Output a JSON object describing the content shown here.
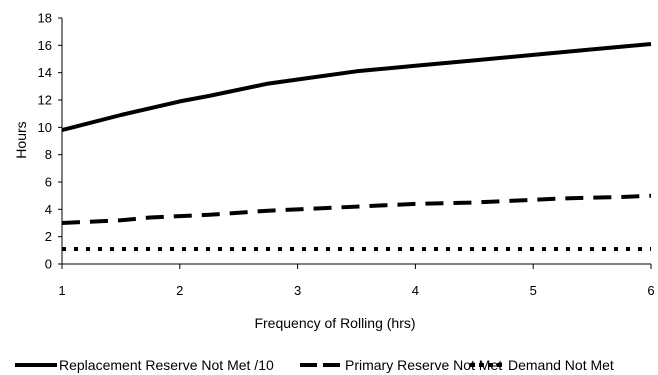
{
  "chart_data": {
    "type": "line",
    "title": "",
    "xlabel": "Frequency of  Rolling (hrs)",
    "ylabel": "Hours",
    "xlim": [
      1,
      6
    ],
    "ylim": [
      0,
      18
    ],
    "x_ticks": [
      1,
      2,
      3,
      4,
      5,
      6
    ],
    "y_ticks": [
      0,
      2,
      4,
      6,
      8,
      10,
      12,
      14,
      16,
      18
    ],
    "grid": false,
    "legend_position": "bottom",
    "series": [
      {
        "name": "Replacement Reserve Not Met /10",
        "style": "solid",
        "color": "#000000",
        "x": [
          1,
          1.5,
          2,
          2.25,
          2.75,
          3.0,
          3.5,
          4,
          4.5,
          5,
          5.5,
          6
        ],
        "y": [
          9.8,
          10.9,
          11.9,
          12.3,
          13.2,
          13.5,
          14.1,
          14.5,
          14.9,
          15.3,
          15.7,
          16.1
        ]
      },
      {
        "name": "Primary Reserve Not Met",
        "style": "long-dash",
        "color": "#000000",
        "x": [
          1,
          1.5,
          1.75,
          2.25,
          2.75,
          3.25,
          3.75,
          4,
          4.5,
          5,
          5.25,
          5.75,
          6
        ],
        "y": [
          3.0,
          3.2,
          3.4,
          3.6,
          3.9,
          4.1,
          4.3,
          4.4,
          4.5,
          4.7,
          4.8,
          4.9,
          5.0
        ]
      },
      {
        "name": "Demand Not Met",
        "style": "dotted",
        "color": "#000000",
        "x": [
          1,
          6
        ],
        "y": [
          1.1,
          1.1
        ]
      }
    ]
  }
}
